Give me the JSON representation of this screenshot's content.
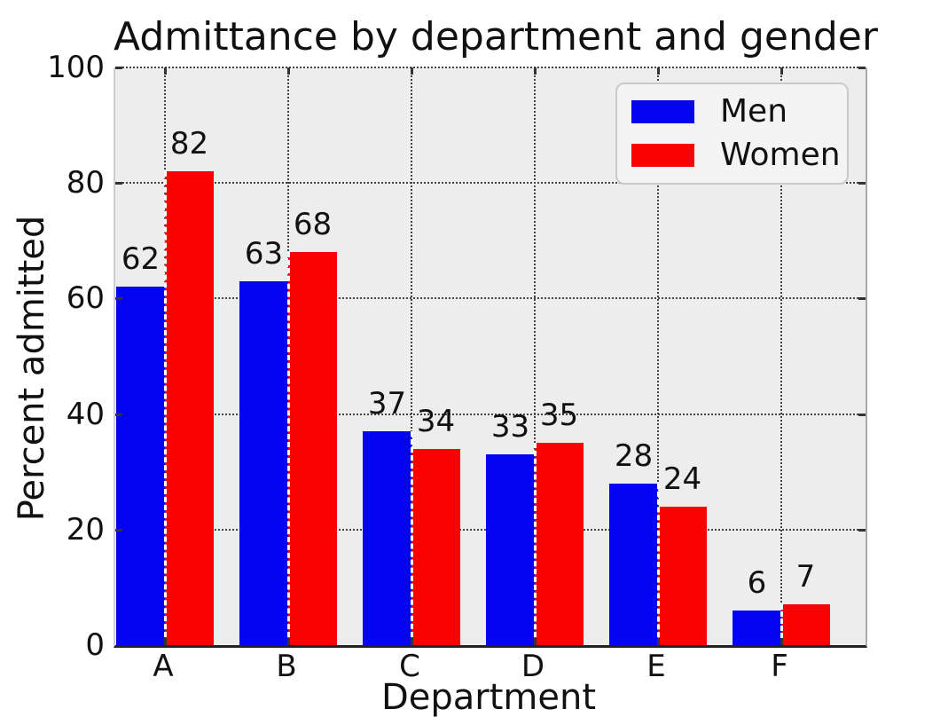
{
  "chart_data": {
    "type": "bar",
    "title": "Admittance by department and gender",
    "xlabel": "Department",
    "ylabel": "Percent admitted",
    "categories": [
      "A",
      "B",
      "C",
      "D",
      "E",
      "F"
    ],
    "series": [
      {
        "name": "Men",
        "color": "#0404f0",
        "values": [
          62,
          63,
          37,
          33,
          28,
          6
        ]
      },
      {
        "name": "Women",
        "color": "#fa0202",
        "values": [
          82,
          68,
          34,
          35,
          24,
          7
        ]
      }
    ],
    "ylim": [
      0,
      100
    ],
    "yticks": [
      0,
      20,
      40,
      60,
      80,
      100
    ],
    "bar_labels": true,
    "grid": "dotted, horizontal and vertical",
    "legend_position": "upper right"
  },
  "colors": {
    "plot_background": "#ededed",
    "figure_background": "#ffffff",
    "gridline": "#444444",
    "pair_separator": "#ffffff",
    "legend_background": "#f4f4f4",
    "legend_border": "#c9c9c9",
    "text": "#111111"
  }
}
